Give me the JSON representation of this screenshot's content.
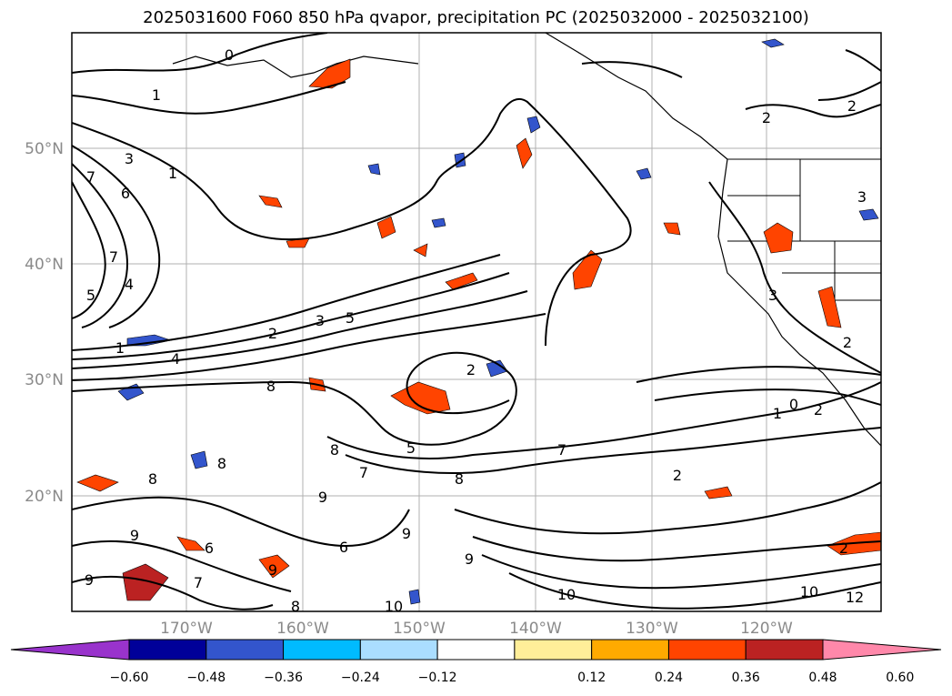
{
  "title": "2025031600 F060 850 hPa qvapor, precipitation PC (2025032000 - 2025032100)",
  "latitude_labels": [
    "50°N",
    "40°N",
    "30°N",
    "20°N"
  ],
  "longitude_labels": [
    "170°W",
    "160°W",
    "150°W",
    "140°W",
    "130°W",
    "120°W"
  ],
  "colorbar": {
    "tick_labels": [
      "−0.60",
      "−0.48",
      "−0.36",
      "−0.24",
      "−0.12",
      "0.12",
      "0.24",
      "0.36",
      "0.48",
      "0.60"
    ],
    "colors": [
      "#9933cc",
      "#000099",
      "#3355cc",
      "#00bbff",
      "#aaddff",
      "#ffffff",
      "#ffee99",
      "#ffaa00",
      "#ff4400",
      "#bb2222",
      "#ff88aa"
    ]
  },
  "contour_labels": [
    "0",
    "1",
    "2",
    "2",
    "2",
    "3",
    "1",
    "6",
    "7",
    "7",
    "5",
    "4",
    "1",
    "4",
    "2",
    "3",
    "5",
    "2",
    "8",
    "8",
    "8",
    "8",
    "7",
    "9",
    "9",
    "9",
    "6",
    "6",
    "7",
    "8",
    "9",
    "9",
    "9",
    "5",
    "8",
    "7",
    "2",
    "10",
    "10",
    "10",
    "12",
    "2",
    "3",
    "3",
    "2",
    "1",
    "0"
  ]
}
